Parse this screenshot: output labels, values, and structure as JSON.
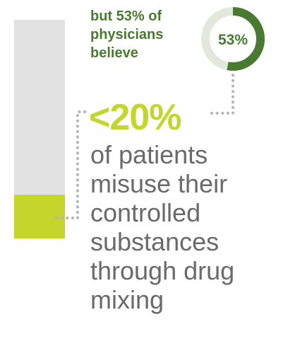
{
  "colors": {
    "bar_track": "#e2e2e2",
    "bar_fill": "#c4d52c",
    "donut_track": "#e3e8dc",
    "donut_fill": "#4a7a32",
    "belief_text": "#4a7a32",
    "stat_text": "#c4d52c",
    "body_text": "#6a6a6a",
    "connector": "#b4b4b4"
  },
  "belief": {
    "lines": [
      "but 53% of",
      "physicians",
      "believe"
    ]
  },
  "stat": {
    "value": "<20%"
  },
  "description": {
    "lines": [
      "of patients",
      "misuse their",
      "controlled",
      "substances",
      "through drug",
      "mixing"
    ]
  },
  "chart_data": [
    {
      "type": "bar",
      "orientation": "vertical",
      "max": 100,
      "value": 20,
      "value_label": "<20%",
      "meaning": "share of patients who misuse their controlled substances through drug mixing"
    },
    {
      "type": "pie",
      "variant": "donut",
      "value": 53,
      "label": "53%",
      "meaning": "share of physicians who believe patients misuse controlled substances through drug mixing"
    }
  ]
}
